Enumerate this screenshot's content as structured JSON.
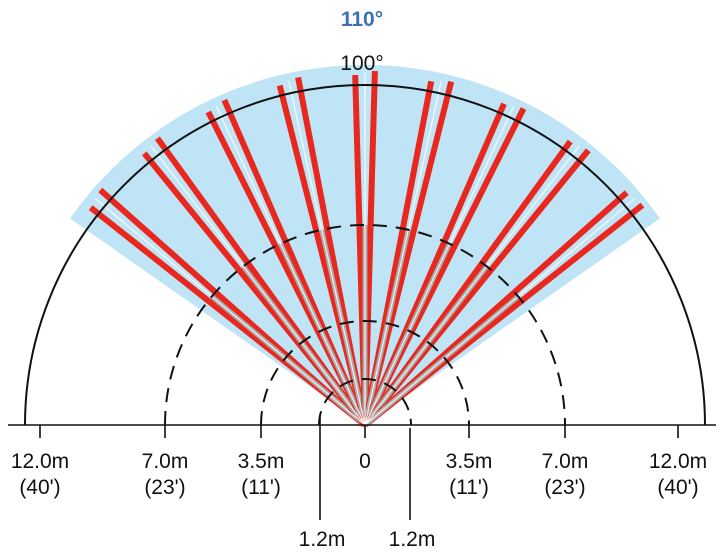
{
  "coverage": {
    "outer_angle_label": "110°",
    "outer_angle_deg": 110,
    "inner_angle_label": "100°",
    "inner_angle_deg": 100,
    "outer_color": "#bfe4f5",
    "outer_label_color": "#3b6fb6",
    "inner_label_color": "#111111"
  },
  "beams": {
    "color": "#e8281e",
    "inner_color": "#a9a9a9",
    "count_pairs": 9,
    "spread_deg": 100
  },
  "axis": {
    "left_labels": [
      {
        "metric": "12.0m",
        "imperial": "(40')"
      },
      {
        "metric": "7.0m",
        "imperial": "(23')"
      },
      {
        "metric": "3.5m",
        "imperial": "(11')"
      }
    ],
    "center_label": "0",
    "right_labels": [
      {
        "metric": "3.5m",
        "imperial": "(11')"
      },
      {
        "metric": "7.0m",
        "imperial": "(23')"
      },
      {
        "metric": "12.0m",
        "imperial": "(40')"
      }
    ],
    "near_labels": [
      "1.2m",
      "1.2m"
    ]
  }
}
